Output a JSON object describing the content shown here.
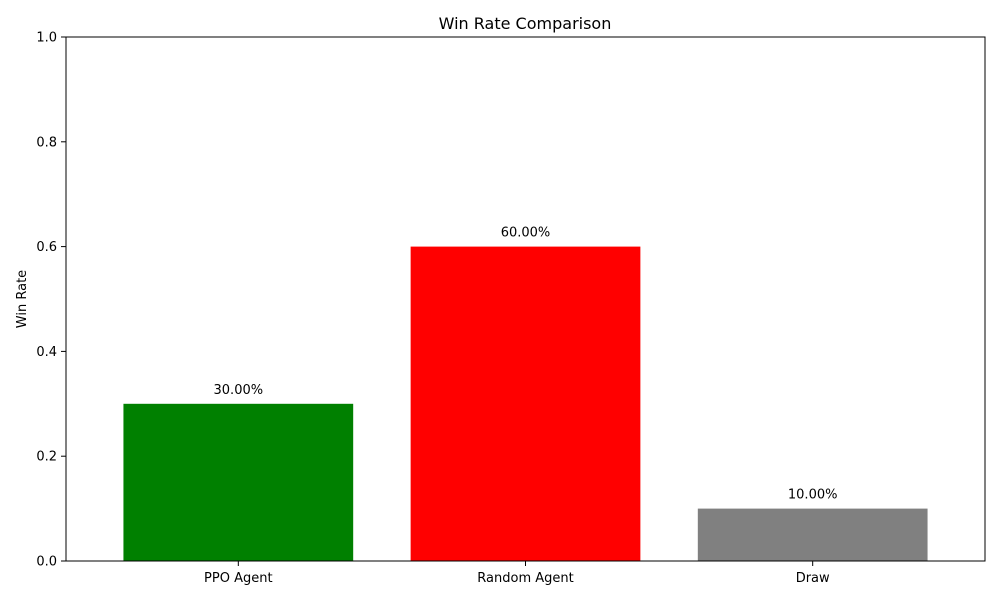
{
  "chart_data": {
    "type": "bar",
    "title": "Win Rate Comparison",
    "xlabel": "",
    "ylabel": "Win Rate",
    "ylim": [
      0,
      1.0
    ],
    "yticks": [
      0.0,
      0.2,
      0.4,
      0.6,
      0.8,
      1.0
    ],
    "ytick_labels": [
      "0.0",
      "0.2",
      "0.4",
      "0.6",
      "0.8",
      "1.0"
    ],
    "categories": [
      "PPO Agent",
      "Random Agent",
      "Draw"
    ],
    "values": [
      0.3,
      0.6,
      0.1
    ],
    "value_labels": [
      "30.00%",
      "60.00%",
      "10.00%"
    ],
    "colors": [
      "#008000",
      "#ff0000",
      "#808080"
    ],
    "grid": false,
    "legend": "none"
  }
}
